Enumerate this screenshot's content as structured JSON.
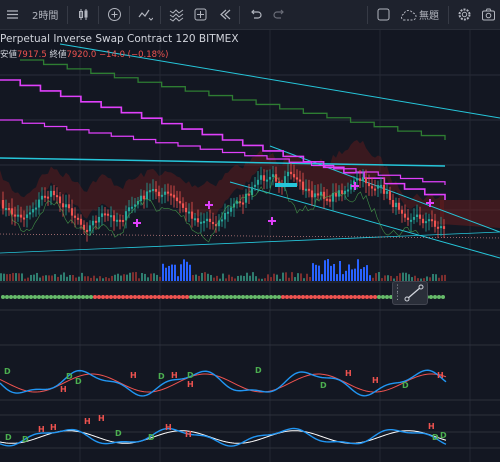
{
  "toolbar": {
    "interval": "2時間",
    "cloud_label": "無題",
    "icons": [
      "menu-icon",
      "candle-style-icon",
      "add-compare-icon",
      "indicators-icon",
      "templates-icon",
      "alert-icon",
      "replay-icon",
      "undo-icon",
      "redo-icon",
      "fullscreen-icon",
      "cloud-icon",
      "settings-icon",
      "camera-icon"
    ]
  },
  "legend": {
    "title": "Perpetual Inverse Swap Contract   120   BITMEX",
    "low_label": "安値",
    "low_value": "7917.5",
    "close_label": "終値",
    "close_value": "7920.0",
    "change": "−14.0 (−0.18%)"
  },
  "signals": {
    "h": "H",
    "d": "D"
  },
  "colors": {
    "background": "#131722",
    "up": "#26a69a",
    "down": "#ef5350",
    "cyan": "#26c6da",
    "magenta": "#e040fb",
    "green": "#2e7d32",
    "blue": "#2962ff"
  }
}
